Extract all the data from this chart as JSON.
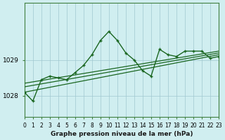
{
  "title": "Graphe pression niveau de la mer (hPa)",
  "background_color": "#d0eef0",
  "grid_color": "#a0c8d0",
  "line_color": "#1a6620",
  "xlim": [
    0,
    23
  ],
  "ylim": [
    1027.4,
    1030.6
  ],
  "yticks": [
    1028,
    1029
  ],
  "xtick_labels": [
    "0",
    "1",
    "2",
    "3",
    "4",
    "5",
    "6",
    "7",
    "8",
    "9",
    "10",
    "11",
    "12",
    "13",
    "14",
    "15",
    "16",
    "17",
    "18",
    "19",
    "20",
    "21",
    "22",
    "23"
  ],
  "main_series_x": [
    0,
    1,
    2,
    3,
    4,
    5,
    6,
    7,
    8,
    9,
    10,
    11,
    12,
    13,
    14,
    15,
    16,
    17,
    18,
    19,
    20,
    21,
    22,
    23
  ],
  "main_series_y": [
    1028.1,
    1027.85,
    1028.45,
    1028.55,
    1028.5,
    1028.45,
    1028.65,
    1028.85,
    1029.15,
    1029.55,
    1029.8,
    1029.55,
    1029.2,
    1029.0,
    1028.7,
    1028.55,
    1029.3,
    1029.15,
    1029.1,
    1029.25,
    1029.25,
    1029.25,
    1029.05,
    1029.1
  ],
  "trend1_x": [
    0,
    23
  ],
  "trend1_y": [
    1028.1,
    1029.15
  ],
  "trend2_x": [
    0,
    23
  ],
  "trend2_y": [
    1028.25,
    1029.2
  ],
  "trend3_x": [
    0,
    23
  ],
  "trend3_y": [
    1028.35,
    1029.25
  ]
}
